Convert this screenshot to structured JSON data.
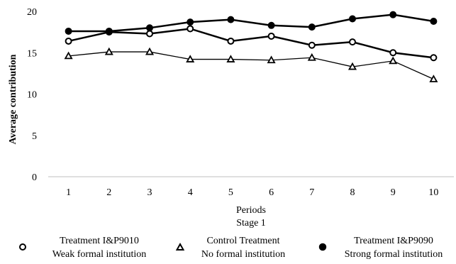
{
  "chart_data": {
    "type": "line",
    "xlabel": "Periods",
    "subtitle": "Stage 1",
    "ylabel": "Average contribution",
    "categories": [
      "1",
      "2",
      "3",
      "4",
      "5",
      "6",
      "7",
      "8",
      "9",
      "10"
    ],
    "y_ticks": [
      "0",
      "5",
      "10",
      "15",
      "20"
    ],
    "ylim": [
      0,
      20
    ],
    "grid": false,
    "legend_position": "bottom",
    "series": [
      {
        "name": "Treatment I&P9010",
        "name_line2": "Weak formal institution",
        "marker": "open-circle",
        "values": [
          16.4,
          17.5,
          17.3,
          17.9,
          16.4,
          17.0,
          15.9,
          16.3,
          15.0,
          14.4
        ]
      },
      {
        "name": "Control Treatment",
        "name_line2": "No formal institution",
        "marker": "open-triangle",
        "values": [
          14.6,
          15.1,
          15.1,
          14.2,
          14.2,
          14.1,
          14.4,
          13.3,
          14.0,
          11.8
        ]
      },
      {
        "name": "Treatment I&P9090",
        "name_line2": "Strong formal institution",
        "marker": "filled-circle",
        "values": [
          17.6,
          17.6,
          18.0,
          18.7,
          19.0,
          18.3,
          18.1,
          19.1,
          19.6,
          18.8
        ]
      }
    ]
  },
  "colors": {
    "line": "#000000",
    "axis": "#bfbfbf",
    "background": "#ffffff"
  }
}
